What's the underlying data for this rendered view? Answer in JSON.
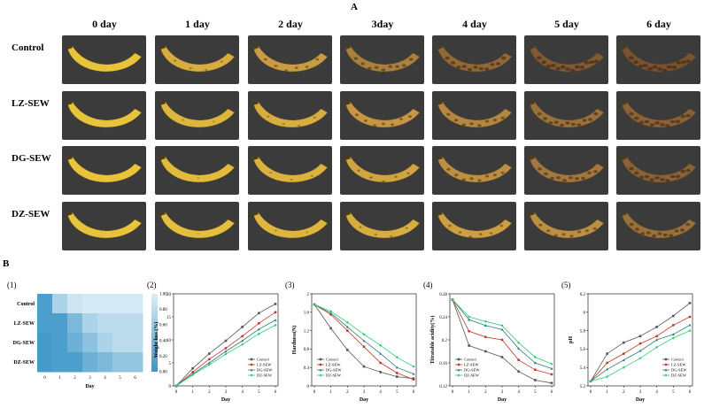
{
  "panel_a": {
    "letter": "A",
    "days": [
      "0 day",
      "1 day",
      "2 day",
      "3day",
      "4 day",
      "5 day",
      "6 day"
    ],
    "treatments": [
      "Control",
      "LZ-SEW",
      "DG-SEW",
      "DZ-SEW"
    ],
    "ripeness": [
      [
        0.0,
        0.25,
        0.45,
        0.65,
        0.8,
        0.9,
        0.95
      ],
      [
        0.0,
        0.15,
        0.25,
        0.5,
        0.6,
        0.75,
        0.85
      ],
      [
        0.0,
        0.1,
        0.2,
        0.35,
        0.55,
        0.7,
        0.85
      ],
      [
        0.0,
        0.05,
        0.15,
        0.25,
        0.4,
        0.55,
        0.75
      ]
    ]
  },
  "panel_b": {
    "letter": "B",
    "sub_labels": [
      "(1)",
      "(2)",
      "(3)",
      "(4)",
      "(5)"
    ]
  },
  "colors": {
    "control": "#555555",
    "lz": "#c0392b",
    "dg": "#2e7d7d",
    "dz": "#2ecc71"
  },
  "chart_data": [
    {
      "type": "heatmap",
      "rows": [
        "Control",
        "LZ-SEW",
        "DG-SEW",
        "DZ-SEW"
      ],
      "columns": [
        "0",
        "1",
        "2",
        "3",
        "4",
        "5",
        "6"
      ],
      "xlabel": "Day",
      "values": [
        [
          0.9,
          0.3,
          0.1,
          0.05,
          0.05,
          0.05,
          0.05
        ],
        [
          0.9,
          0.9,
          0.6,
          0.3,
          0.2,
          0.2,
          0.2
        ],
        [
          0.95,
          0.9,
          0.7,
          0.5,
          0.3,
          0.2,
          0.2
        ],
        [
          0.95,
          0.9,
          0.9,
          0.7,
          0.6,
          0.45,
          0.45
        ]
      ],
      "colorbar_ticks": [
        "1.00",
        "0.80",
        "0.60",
        "0.40",
        "0.20",
        "0.00"
      ]
    },
    {
      "type": "line",
      "xlabel": "Day",
      "ylabel": "Weight loss (%)",
      "x": [
        0,
        1,
        2,
        3,
        4,
        5,
        6
      ],
      "ylim": [
        0,
        20
      ],
      "yticks": [
        0,
        5,
        10,
        15,
        20
      ],
      "series": [
        {
          "name": "Control",
          "values": [
            0,
            3.8,
            7.0,
            9.8,
            12.8,
            15.8,
            17.8
          ]
        },
        {
          "name": "LZ-SEW",
          "values": [
            0,
            3.0,
            5.8,
            8.2,
            10.8,
            13.6,
            16.0
          ]
        },
        {
          "name": "DG-SEW",
          "values": [
            0,
            2.6,
            5.0,
            7.5,
            9.8,
            12.3,
            14.3
          ]
        },
        {
          "name": "DZ-SEW",
          "values": [
            0,
            2.4,
            4.6,
            6.9,
            9.0,
            11.3,
            13.2
          ]
        }
      ]
    },
    {
      "type": "line",
      "xlabel": "Day",
      "ylabel": "Hardness(N)",
      "x": [
        0,
        1,
        2,
        3,
        4,
        5,
        6
      ],
      "ylim": [
        0,
        2.0
      ],
      "yticks": [
        0,
        0.4,
        0.8,
        1.2,
        1.6,
        2.0
      ],
      "series": [
        {
          "name": "Control",
          "values": [
            1.77,
            1.25,
            0.78,
            0.42,
            0.3,
            0.2,
            0.16
          ]
        },
        {
          "name": "LZ-SEW",
          "values": [
            1.77,
            1.55,
            1.2,
            0.85,
            0.5,
            0.28,
            0.14
          ]
        },
        {
          "name": "DG-SEW",
          "values": [
            1.77,
            1.58,
            1.28,
            0.98,
            0.7,
            0.4,
            0.26
          ]
        },
        {
          "name": "DZ-SEW",
          "values": [
            1.77,
            1.62,
            1.38,
            1.12,
            0.88,
            0.62,
            0.42
          ]
        }
      ]
    },
    {
      "type": "line",
      "xlabel": "Day",
      "ylabel": "Titratable acidity(%)",
      "x": [
        0,
        1,
        2,
        3,
        4,
        5,
        6
      ],
      "ylim": [
        0.12,
        0.28
      ],
      "yticks": [
        0.12,
        0.16,
        0.2,
        0.24,
        0.28
      ],
      "series": [
        {
          "name": "Control",
          "values": [
            0.27,
            0.19,
            0.18,
            0.17,
            0.145,
            0.13,
            0.125
          ]
        },
        {
          "name": "LZ-SEW",
          "values": [
            0.27,
            0.215,
            0.205,
            0.2,
            0.165,
            0.148,
            0.14
          ]
        },
        {
          "name": "DG-SEW",
          "values": [
            0.27,
            0.235,
            0.225,
            0.218,
            0.185,
            0.16,
            0.15
          ]
        },
        {
          "name": "DZ-SEW",
          "values": [
            0.27,
            0.24,
            0.232,
            0.225,
            0.195,
            0.17,
            0.158
          ]
        }
      ]
    },
    {
      "type": "line",
      "xlabel": "Day",
      "ylabel": "pH",
      "x": [
        0,
        1,
        2,
        3,
        4,
        5,
        6
      ],
      "ylim": [
        5.2,
        6.2
      ],
      "yticks": [
        5.2,
        5.4,
        5.6,
        5.8,
        6.0,
        6.2
      ],
      "series": [
        {
          "name": "Control",
          "values": [
            5.25,
            5.55,
            5.67,
            5.74,
            5.84,
            5.96,
            6.1
          ]
        },
        {
          "name": "LZ-SEW",
          "values": [
            5.25,
            5.45,
            5.55,
            5.66,
            5.74,
            5.86,
            5.95
          ]
        },
        {
          "name": "DG-SEW",
          "values": [
            5.25,
            5.38,
            5.48,
            5.58,
            5.7,
            5.76,
            5.86
          ]
        },
        {
          "name": "DZ-SEW",
          "values": [
            5.25,
            5.3,
            5.4,
            5.5,
            5.62,
            5.72,
            5.8
          ]
        }
      ]
    }
  ]
}
